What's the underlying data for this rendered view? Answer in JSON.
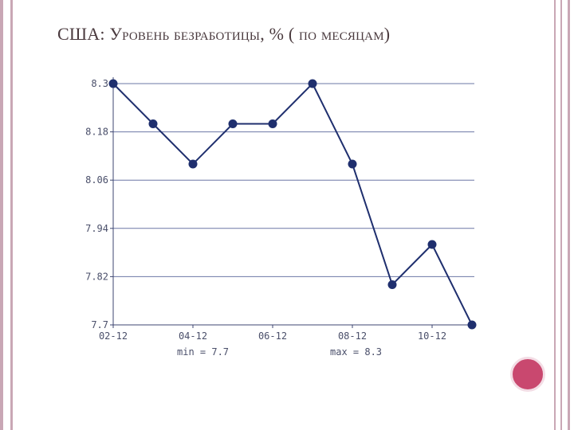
{
  "slide": {
    "title": "США: Уровень безработицы, % ( по месяцам)"
  },
  "chart_data": {
    "type": "line",
    "title": "США: Уровень безработицы, % ( по месяцам)",
    "xlabel": "",
    "ylabel": "",
    "x_tick_labels": [
      "02-12",
      "04-12",
      "06-12",
      "08-12",
      "10-12"
    ],
    "y_ticks": [
      "8.3",
      "8.18",
      "8.06",
      "7.94",
      "7.82",
      "7.7"
    ],
    "ylim": [
      7.7,
      8.3
    ],
    "grid": true,
    "series": [
      {
        "values": [
          8.3,
          8.2,
          8.1,
          8.2,
          8.2,
          8.3,
          8.1,
          7.8,
          7.9,
          7.7
        ]
      }
    ],
    "stats": {
      "min": "min = 7.7",
      "max": "max = 8.3"
    },
    "colors": {
      "line": "#1f2f6e",
      "grid": "#6b77a6",
      "axis": "#3c4570"
    }
  }
}
